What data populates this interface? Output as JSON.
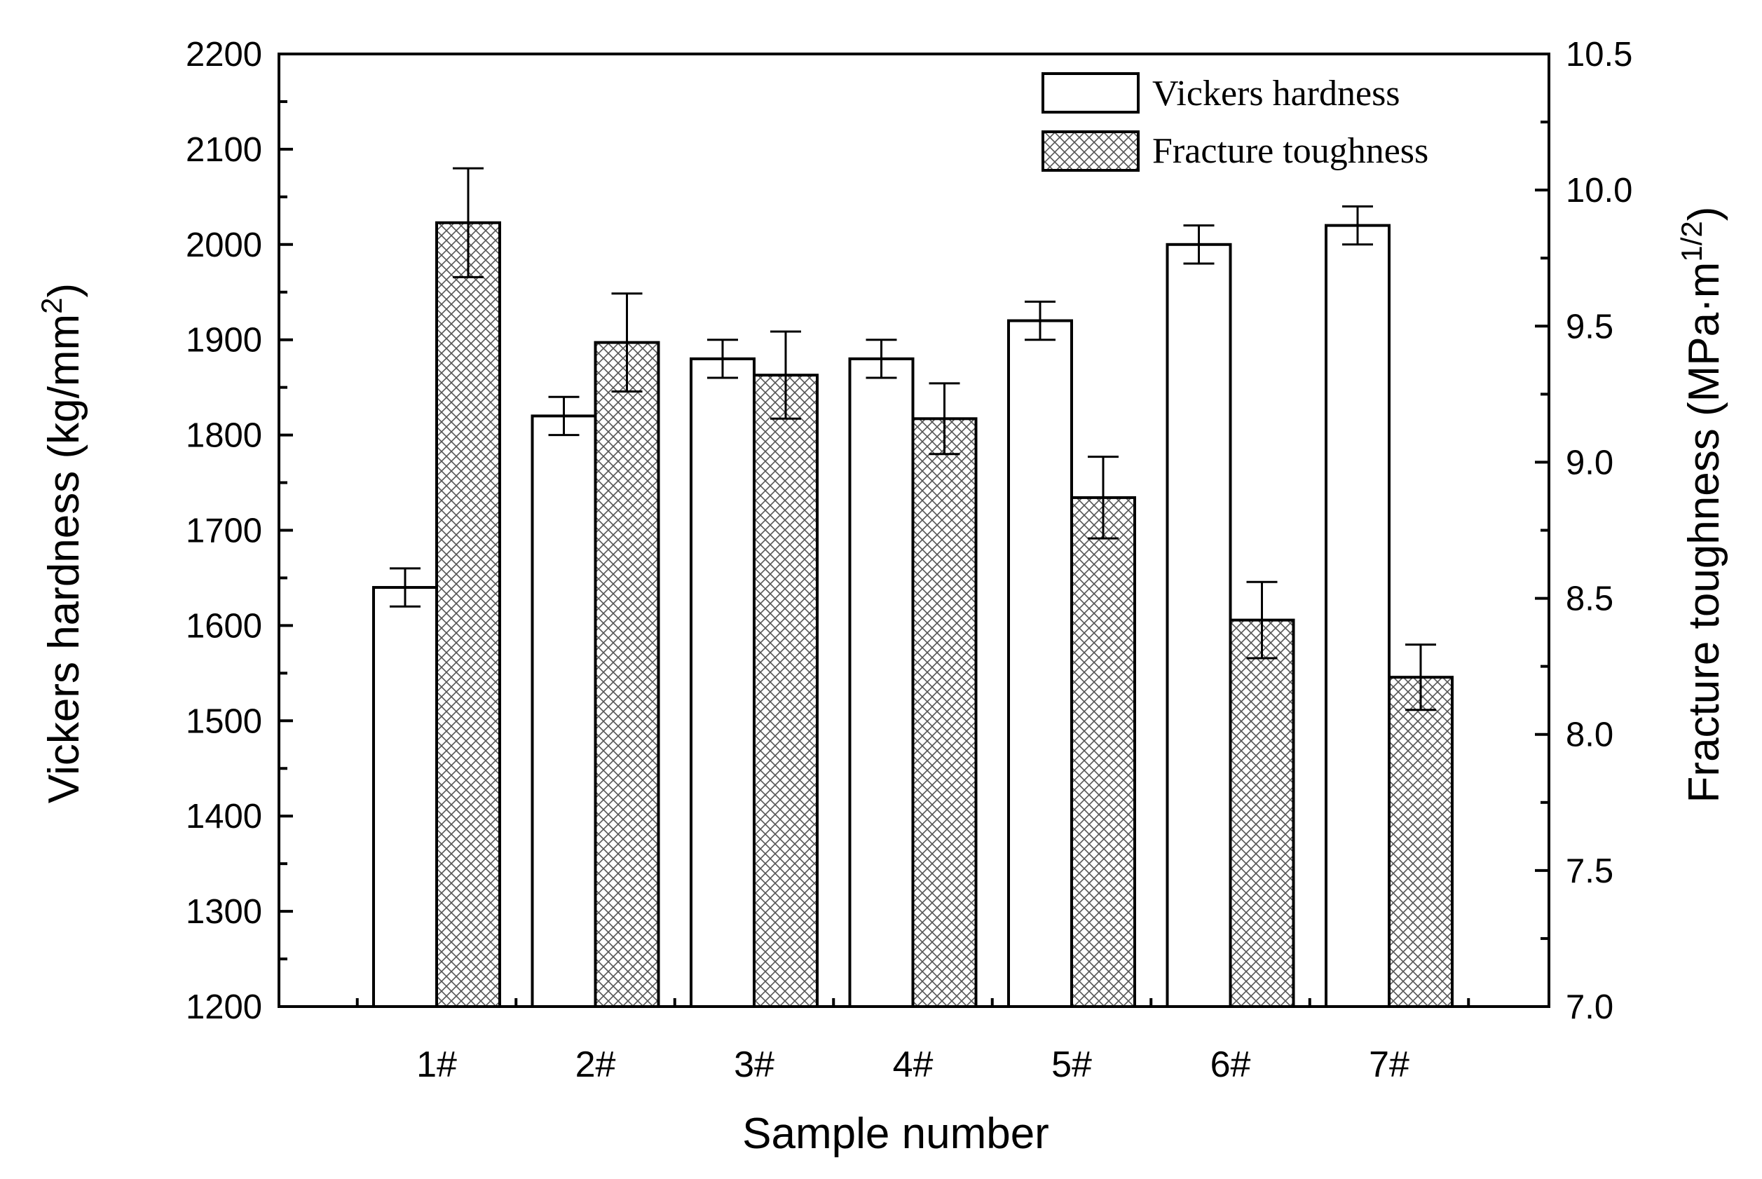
{
  "chart_data": {
    "type": "bar",
    "categories": [
      "1#",
      "2#",
      "3#",
      "4#",
      "5#",
      "6#",
      "7#"
    ],
    "series": [
      {
        "name": "Vickers hardness",
        "axis": "left",
        "pattern": "none",
        "values": [
          1640,
          1820,
          1880,
          1880,
          1920,
          2000,
          2020
        ],
        "errors": [
          20,
          20,
          20,
          20,
          20,
          20,
          20
        ]
      },
      {
        "name": "Fracture toughness",
        "axis": "right",
        "pattern": "crosshatch",
        "values": [
          9.88,
          9.44,
          9.32,
          9.16,
          8.87,
          8.42,
          8.21
        ],
        "errors": [
          0.2,
          0.18,
          0.16,
          0.13,
          0.15,
          0.14,
          0.12
        ]
      }
    ],
    "xlabel": "Sample number",
    "ylabel_left": "Vickers hardness (kg/mm",
    "ylabel_left_sup": "2",
    "ylabel_left_close": ")",
    "ylabel_right": "Fracture toughness (MPa·m",
    "ylabel_right_sup": "1/2",
    "ylabel_right_close": ")",
    "ylim_left": [
      1200,
      2200
    ],
    "ylim_right": [
      7.0,
      10.5
    ],
    "yticks_left": [
      "1200",
      "1300",
      "1400",
      "1500",
      "1600",
      "1700",
      "1800",
      "1900",
      "2000",
      "2100",
      "2200"
    ],
    "yticks_right": [
      "7.0",
      "7.5",
      "8.0",
      "8.5",
      "9.0",
      "9.5",
      "10.0",
      "10.5"
    ],
    "legend_position": "top-right",
    "grid": false
  }
}
